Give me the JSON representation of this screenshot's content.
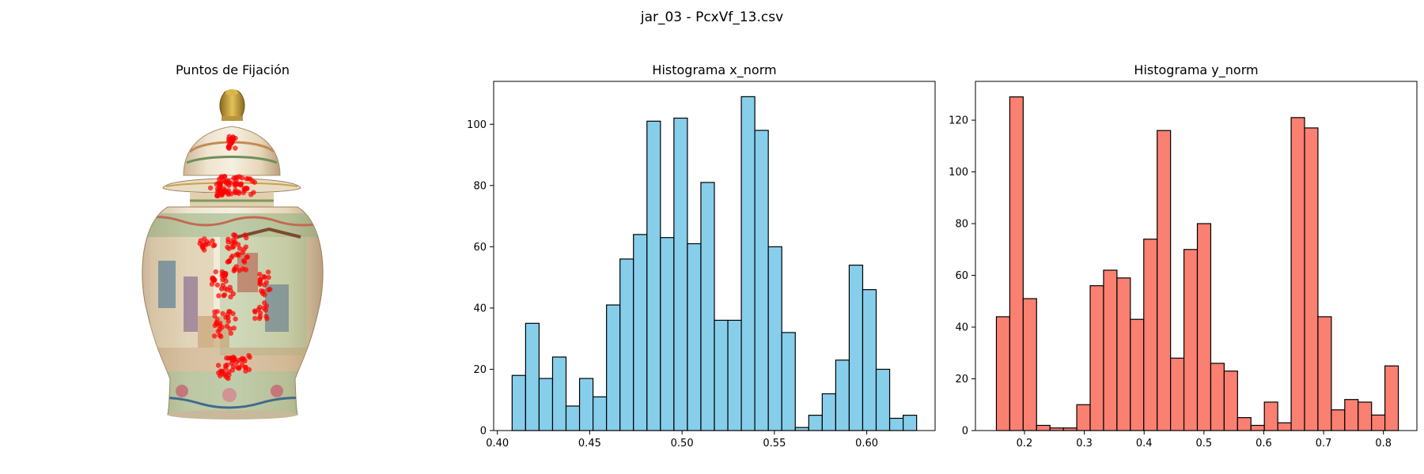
{
  "figure": {
    "title": "jar_03 - PcxVf_13.csv"
  },
  "image_panel": {
    "title": "Puntos de Fijación",
    "image_subject": "chinese-porcelain-ginger-jar",
    "fixation_color": "#ff0000"
  },
  "chart_data": [
    {
      "type": "bar",
      "title": "Histograma x_norm",
      "xlabel": "",
      "ylabel": "",
      "bar_color": "#87ceeb",
      "edge_color": "#000000",
      "xlim": [
        0.398,
        0.637
      ],
      "ylim": [
        0,
        114
      ],
      "xticks": [
        0.4,
        0.45,
        0.5,
        0.55,
        0.6
      ],
      "xtick_labels": [
        "0.40",
        "0.45",
        "0.50",
        "0.55",
        "0.60"
      ],
      "yticks": [
        0,
        20,
        40,
        60,
        80,
        100
      ],
      "bin_start": 0.408,
      "bin_width": 0.0073,
      "values": [
        18,
        35,
        17,
        24,
        8,
        17,
        11,
        41,
        56,
        64,
        101,
        63,
        102,
        61,
        81,
        36,
        36,
        109,
        98,
        60,
        32,
        1,
        5,
        12,
        23,
        54,
        46,
        20,
        4,
        5
      ]
    },
    {
      "type": "bar",
      "title": "Histograma y_norm",
      "xlabel": "",
      "ylabel": "",
      "bar_color": "#fa8072",
      "edge_color": "#000000",
      "xlim": [
        0.118,
        0.856
      ],
      "ylim": [
        0,
        135
      ],
      "xticks": [
        0.2,
        0.3,
        0.4,
        0.5,
        0.6,
        0.7,
        0.8
      ],
      "xtick_labels": [
        "0.2",
        "0.3",
        "0.4",
        "0.5",
        "0.6",
        "0.7",
        "0.8"
      ],
      "yticks": [
        0,
        20,
        40,
        60,
        80,
        100,
        120
      ],
      "bin_start": 0.153,
      "bin_width": 0.0224,
      "values": [
        44,
        129,
        51,
        2,
        1,
        1,
        10,
        56,
        62,
        59,
        43,
        74,
        116,
        28,
        70,
        80,
        26,
        23,
        5,
        2,
        11,
        3,
        121,
        117,
        44,
        8,
        12,
        11,
        6,
        25
      ]
    }
  ]
}
